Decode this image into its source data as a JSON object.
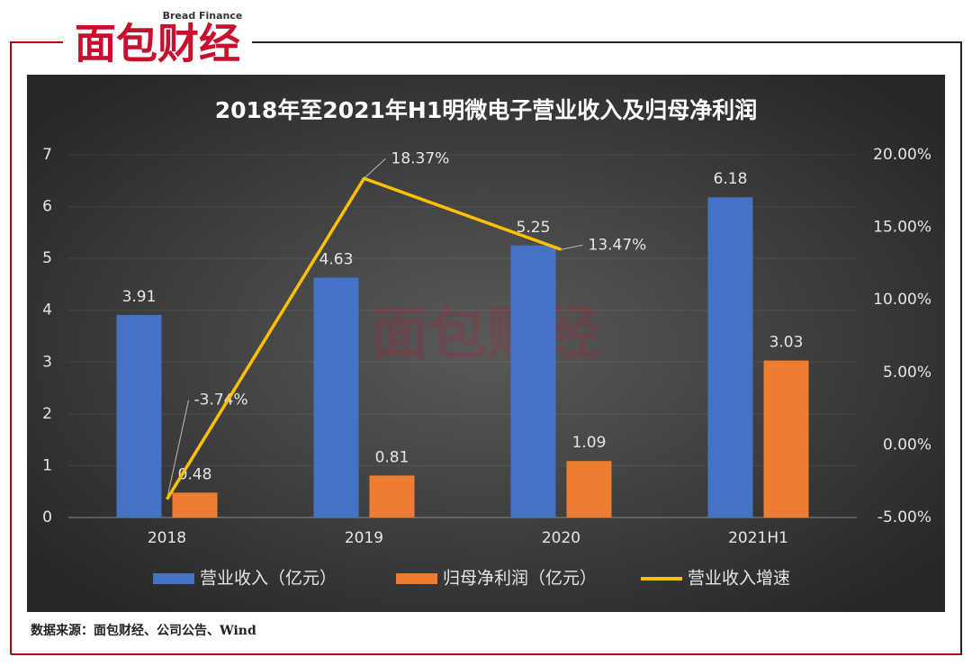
{
  "header": {
    "logo": "面包财经",
    "logo_subtitle": "Bread Finance"
  },
  "chart_data": {
    "type": "bar",
    "title": "2018年至2021年H1明微电子营业收入及归母净利润",
    "categories": [
      "2018",
      "2019",
      "2020",
      "2021H1"
    ],
    "series": [
      {
        "name": "营业收入（亿元）",
        "type": "bar",
        "color": "#4472c4",
        "values": [
          3.91,
          4.63,
          5.25,
          6.18
        ]
      },
      {
        "name": "归母净利润（亿元）",
        "type": "bar",
        "color": "#ed7d31",
        "values": [
          0.48,
          0.81,
          1.09,
          3.03
        ]
      },
      {
        "name": "营业收入增速",
        "type": "line",
        "axis": "y2",
        "color": "#ffc000",
        "values": [
          -3.74,
          18.37,
          13.47,
          null
        ],
        "value_labels": [
          "-3.74%",
          "18.37%",
          "13.47%",
          null
        ]
      }
    ],
    "ylim": [
      0,
      7
    ],
    "yticks": [
      0,
      1,
      2,
      3,
      4,
      5,
      6,
      7
    ],
    "y2lim": [
      -5,
      20
    ],
    "y2ticks": [
      {
        "value": -5,
        "label": "-5.00%"
      },
      {
        "value": 0,
        "label": "0.00%"
      },
      {
        "value": 5,
        "label": "5.00%"
      },
      {
        "value": 10,
        "label": "10.00%"
      },
      {
        "value": 15,
        "label": "15.00%"
      },
      {
        "value": 20,
        "label": "20.00%"
      }
    ],
    "grid": true,
    "legend": "bottom"
  },
  "source": "数据来源：面包财经、公司公告、Wind"
}
